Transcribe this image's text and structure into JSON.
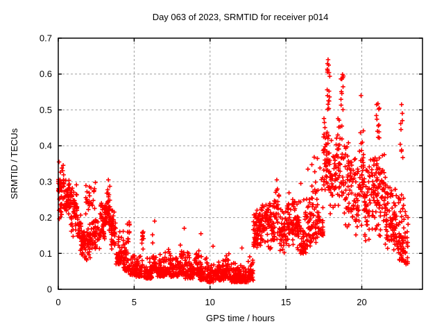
{
  "chart_data": {
    "type": "scatter",
    "title": "Day 063 of 2023, SRMTID for receiver p014",
    "xlabel": "GPS time / hours",
    "ylabel": "SRMTID / TECUs",
    "xlim": [
      0,
      24
    ],
    "ylim": [
      0,
      0.7
    ],
    "xticks": {
      "values": [
        0,
        5,
        10,
        15,
        20
      ],
      "labels": [
        "0",
        "5",
        "10",
        "15",
        "20"
      ]
    },
    "yticks": {
      "values": [
        0,
        0.1,
        0.2,
        0.3,
        0.4,
        0.5,
        0.6,
        0.7
      ],
      "labels": [
        "0",
        "0.1",
        "0.2",
        "0.3",
        "0.4",
        "0.5",
        "0.6",
        "0.7"
      ]
    },
    "grid": {
      "show": true,
      "color": "#9e9e9e",
      "dash": [
        3,
        3
      ]
    },
    "frame_color": "#000000",
    "background_color": "#ffffff",
    "legend": "none",
    "series": [
      {
        "name": "SRMTID",
        "marker": "plus",
        "color": "#ff0000",
        "seed": 63,
        "profile_format": [
          "t_start_hours",
          "t_end_hours",
          "n_points",
          "y_min_TECU",
          "y_max_TECU",
          "distribution c=center b=bottom u=uniform"
        ],
        "scatter_profile": [
          [
            0.0,
            0.35,
            45,
            0.19,
            0.36,
            "c"
          ],
          [
            0.35,
            0.8,
            50,
            0.2,
            0.33,
            "c"
          ],
          [
            0.8,
            1.25,
            55,
            0.14,
            0.3,
            "c"
          ],
          [
            1.25,
            1.5,
            25,
            0.1,
            0.22,
            "c"
          ],
          [
            1.5,
            1.95,
            55,
            0.07,
            0.18,
            "c"
          ],
          [
            1.95,
            2.25,
            30,
            0.08,
            0.2,
            "c"
          ],
          [
            1.8,
            2.45,
            25,
            0.2,
            0.31,
            "c"
          ],
          [
            2.25,
            2.75,
            45,
            0.1,
            0.21,
            "c"
          ],
          [
            2.75,
            3.1,
            45,
            0.13,
            0.26,
            "c"
          ],
          [
            3.1,
            3.45,
            50,
            0.15,
            0.3,
            "c"
          ],
          [
            3.45,
            3.8,
            45,
            0.1,
            0.24,
            "c"
          ],
          [
            3.8,
            4.3,
            55,
            0.07,
            0.17,
            "b"
          ],
          [
            4.3,
            4.65,
            40,
            0.05,
            0.15,
            "b"
          ],
          [
            4.55,
            4.7,
            12,
            0.12,
            0.19,
            "u"
          ],
          [
            4.65,
            5.1,
            45,
            0.04,
            0.12,
            "b"
          ],
          [
            5.1,
            5.55,
            45,
            0.035,
            0.11,
            "b"
          ],
          [
            5.5,
            5.65,
            10,
            0.1,
            0.16,
            "u"
          ],
          [
            5.65,
            6.2,
            55,
            0.03,
            0.1,
            "b"
          ],
          [
            6.2,
            6.5,
            30,
            0.05,
            0.16,
            "b"
          ],
          [
            6.5,
            7.0,
            50,
            0.035,
            0.11,
            "b"
          ],
          [
            7.0,
            7.4,
            40,
            0.04,
            0.13,
            "b"
          ],
          [
            7.4,
            7.9,
            50,
            0.035,
            0.115,
            "b"
          ],
          [
            7.9,
            8.35,
            45,
            0.04,
            0.14,
            "b"
          ],
          [
            8.35,
            8.9,
            55,
            0.03,
            0.12,
            "b"
          ],
          [
            8.9,
            9.3,
            40,
            0.04,
            0.14,
            "b"
          ],
          [
            9.3,
            9.8,
            50,
            0.025,
            0.1,
            "b"
          ],
          [
            9.8,
            10.4,
            60,
            0.02,
            0.085,
            "b"
          ],
          [
            10.4,
            10.9,
            55,
            0.025,
            0.095,
            "b"
          ],
          [
            10.9,
            11.3,
            45,
            0.03,
            0.115,
            "b"
          ],
          [
            11.3,
            11.9,
            60,
            0.02,
            0.08,
            "b"
          ],
          [
            11.9,
            12.5,
            65,
            0.02,
            0.075,
            "b"
          ],
          [
            12.5,
            12.85,
            35,
            0.025,
            0.1,
            "b"
          ],
          [
            12.85,
            13.2,
            45,
            0.09,
            0.235,
            "c"
          ],
          [
            13.2,
            13.7,
            50,
            0.11,
            0.25,
            "c"
          ],
          [
            13.7,
            14.2,
            50,
            0.1,
            0.26,
            "c"
          ],
          [
            14.2,
            14.55,
            35,
            0.12,
            0.3,
            "c"
          ],
          [
            14.55,
            15.0,
            45,
            0.08,
            0.24,
            "c"
          ],
          [
            15.0,
            15.45,
            45,
            0.1,
            0.285,
            "c"
          ],
          [
            15.45,
            15.9,
            45,
            0.09,
            0.25,
            "c"
          ],
          [
            15.9,
            16.35,
            45,
            0.1,
            0.3,
            "b"
          ],
          [
            16.35,
            16.7,
            35,
            0.12,
            0.335,
            "b"
          ],
          [
            16.7,
            17.1,
            40,
            0.13,
            0.42,
            "b"
          ],
          [
            17.1,
            17.45,
            35,
            0.15,
            0.38,
            "b"
          ],
          [
            17.45,
            17.8,
            45,
            0.22,
            0.5,
            "c"
          ],
          [
            17.7,
            17.9,
            14,
            0.5,
            0.645,
            "u"
          ],
          [
            17.8,
            18.3,
            45,
            0.18,
            0.46,
            "c"
          ],
          [
            18.3,
            18.8,
            45,
            0.2,
            0.5,
            "c"
          ],
          [
            18.6,
            18.85,
            10,
            0.5,
            0.6,
            "u"
          ],
          [
            18.8,
            19.3,
            45,
            0.15,
            0.42,
            "c"
          ],
          [
            19.3,
            19.8,
            45,
            0.13,
            0.4,
            "c"
          ],
          [
            19.8,
            20.15,
            35,
            0.15,
            0.48,
            "c"
          ],
          [
            20.15,
            20.6,
            45,
            0.1,
            0.38,
            "c"
          ],
          [
            20.6,
            21.0,
            40,
            0.12,
            0.42,
            "c"
          ],
          [
            20.95,
            21.15,
            10,
            0.42,
            0.52,
            "u"
          ],
          [
            21.0,
            21.5,
            50,
            0.13,
            0.4,
            "c"
          ],
          [
            21.5,
            22.0,
            55,
            0.085,
            0.33,
            "c"
          ],
          [
            22.0,
            22.45,
            50,
            0.065,
            0.3,
            "c"
          ],
          [
            22.45,
            22.8,
            45,
            0.08,
            0.35,
            "b"
          ],
          [
            22.5,
            22.7,
            8,
            0.35,
            0.5,
            "u"
          ],
          [
            22.8,
            23.05,
            25,
            0.07,
            0.27,
            "b"
          ]
        ],
        "peak_points": [
          [
            0.05,
            0.355
          ],
          [
            3.3,
            0.305
          ],
          [
            6.35,
            0.19
          ],
          [
            8.3,
            0.17
          ],
          [
            9.4,
            0.155
          ],
          [
            10.2,
            0.12
          ],
          [
            12.1,
            0.115
          ],
          [
            14.4,
            0.305
          ],
          [
            16.45,
            0.335
          ],
          [
            17.78,
            0.64
          ],
          [
            17.82,
            0.625
          ],
          [
            17.75,
            0.61
          ],
          [
            18.75,
            0.59
          ],
          [
            19.95,
            0.54
          ],
          [
            20.98,
            0.515
          ],
          [
            21.15,
            0.505
          ],
          [
            22.62,
            0.515
          ]
        ]
      }
    ]
  }
}
